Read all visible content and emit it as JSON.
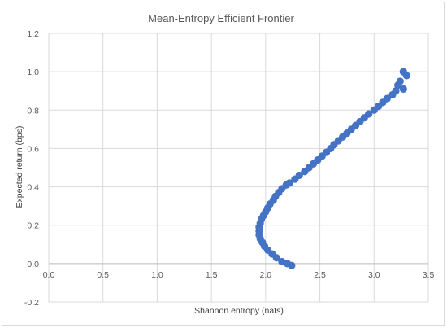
{
  "chart_data": {
    "type": "scatter",
    "title": "Mean-Entropy Efficient Frontier",
    "xlabel": "Shannon entropy (nats)",
    "ylabel": "Expected return (bps)",
    "xlim": [
      0,
      3.5
    ],
    "ylim": [
      -0.2,
      1.2
    ],
    "x_ticks": [
      "0.0",
      "0.5",
      "1.0",
      "1.5",
      "2.0",
      "2.5",
      "3.0",
      "3.5"
    ],
    "y_ticks": [
      "-0.2",
      "0.0",
      "0.2",
      "0.4",
      "0.6",
      "0.8",
      "1.0",
      "1.2"
    ],
    "grid": true,
    "legend": "none",
    "marker_color": "#4472C4",
    "series": [
      {
        "points": [
          [
            2.24,
            -0.01
          ],
          [
            2.2,
            0.0
          ],
          [
            2.15,
            0.01
          ],
          [
            2.1,
            0.03
          ],
          [
            2.06,
            0.05
          ],
          [
            2.02,
            0.07
          ],
          [
            1.99,
            0.09
          ],
          [
            1.97,
            0.11
          ],
          [
            1.95,
            0.13
          ],
          [
            1.94,
            0.15
          ],
          [
            1.94,
            0.17
          ],
          [
            1.94,
            0.19
          ],
          [
            1.95,
            0.21
          ],
          [
            1.96,
            0.23
          ],
          [
            1.98,
            0.25
          ],
          [
            2.0,
            0.27
          ],
          [
            2.02,
            0.29
          ],
          [
            2.04,
            0.31
          ],
          [
            2.07,
            0.33
          ],
          [
            2.09,
            0.35
          ],
          [
            2.12,
            0.37
          ],
          [
            2.15,
            0.39
          ],
          [
            2.19,
            0.41
          ],
          [
            2.22,
            0.42
          ],
          [
            2.27,
            0.44
          ],
          [
            2.31,
            0.46
          ],
          [
            2.36,
            0.48
          ],
          [
            2.4,
            0.5
          ],
          [
            2.44,
            0.52
          ],
          [
            2.48,
            0.54
          ],
          [
            2.52,
            0.56
          ],
          [
            2.56,
            0.58
          ],
          [
            2.6,
            0.6
          ],
          [
            2.63,
            0.62
          ],
          [
            2.67,
            0.64
          ],
          [
            2.71,
            0.66
          ],
          [
            2.75,
            0.68
          ],
          [
            2.79,
            0.7
          ],
          [
            2.83,
            0.72
          ],
          [
            2.87,
            0.74
          ],
          [
            2.91,
            0.76
          ],
          [
            2.95,
            0.78
          ],
          [
            3.0,
            0.8
          ],
          [
            3.04,
            0.82
          ],
          [
            3.08,
            0.84
          ],
          [
            3.12,
            0.86
          ],
          [
            3.17,
            0.88
          ],
          [
            3.2,
            0.9
          ],
          [
            3.22,
            0.93
          ],
          [
            3.24,
            0.95
          ],
          [
            3.27,
            0.91
          ],
          [
            3.27,
            1.0
          ],
          [
            3.3,
            0.98
          ]
        ]
      }
    ]
  }
}
